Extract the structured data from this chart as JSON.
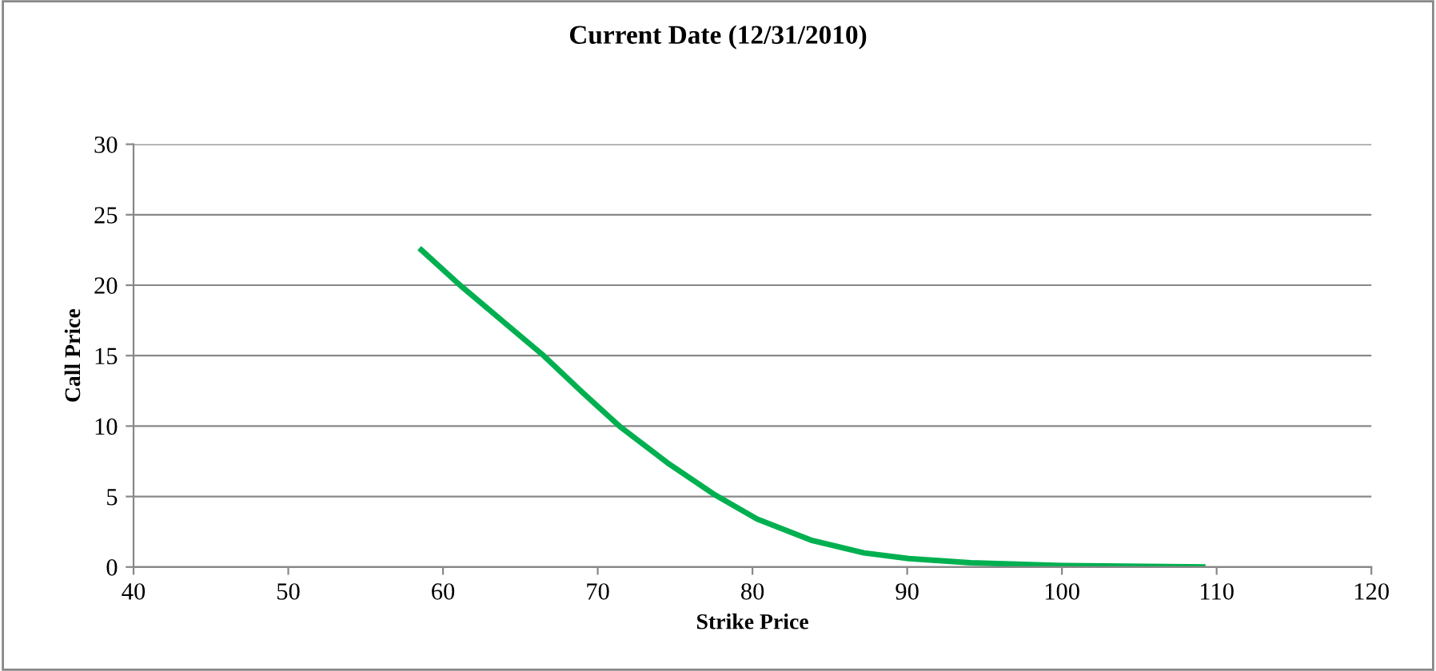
{
  "chart_data": {
    "type": "line",
    "title": "Current Date (12/31/2010)",
    "xlabel": "Strike Price",
    "ylabel": "Call Price",
    "series": [
      {
        "color": "#00b050",
        "x": [
          58.6,
          61.1,
          63.8,
          66.5,
          69.0,
          71.4,
          74.5,
          77.6,
          80.3,
          83.8,
          87.2,
          90.1,
          94.1,
          100.0,
          109.1
        ],
        "values": [
          22.5,
          20.0,
          17.5,
          15.0,
          12.4,
          10.0,
          7.4,
          5.1,
          3.4,
          1.9,
          1.0,
          0.6,
          0.3,
          0.1,
          0.0
        ]
      }
    ],
    "xlim": [
      40,
      120
    ],
    "xticks": [
      40,
      50,
      60,
      70,
      80,
      90,
      100,
      110,
      120
    ],
    "ylim": [
      0,
      30
    ],
    "yticks": [
      0,
      5,
      10,
      15,
      20,
      25,
      30
    ],
    "grid": "y",
    "marker": "none",
    "line_style": "solid",
    "legend": false
  }
}
